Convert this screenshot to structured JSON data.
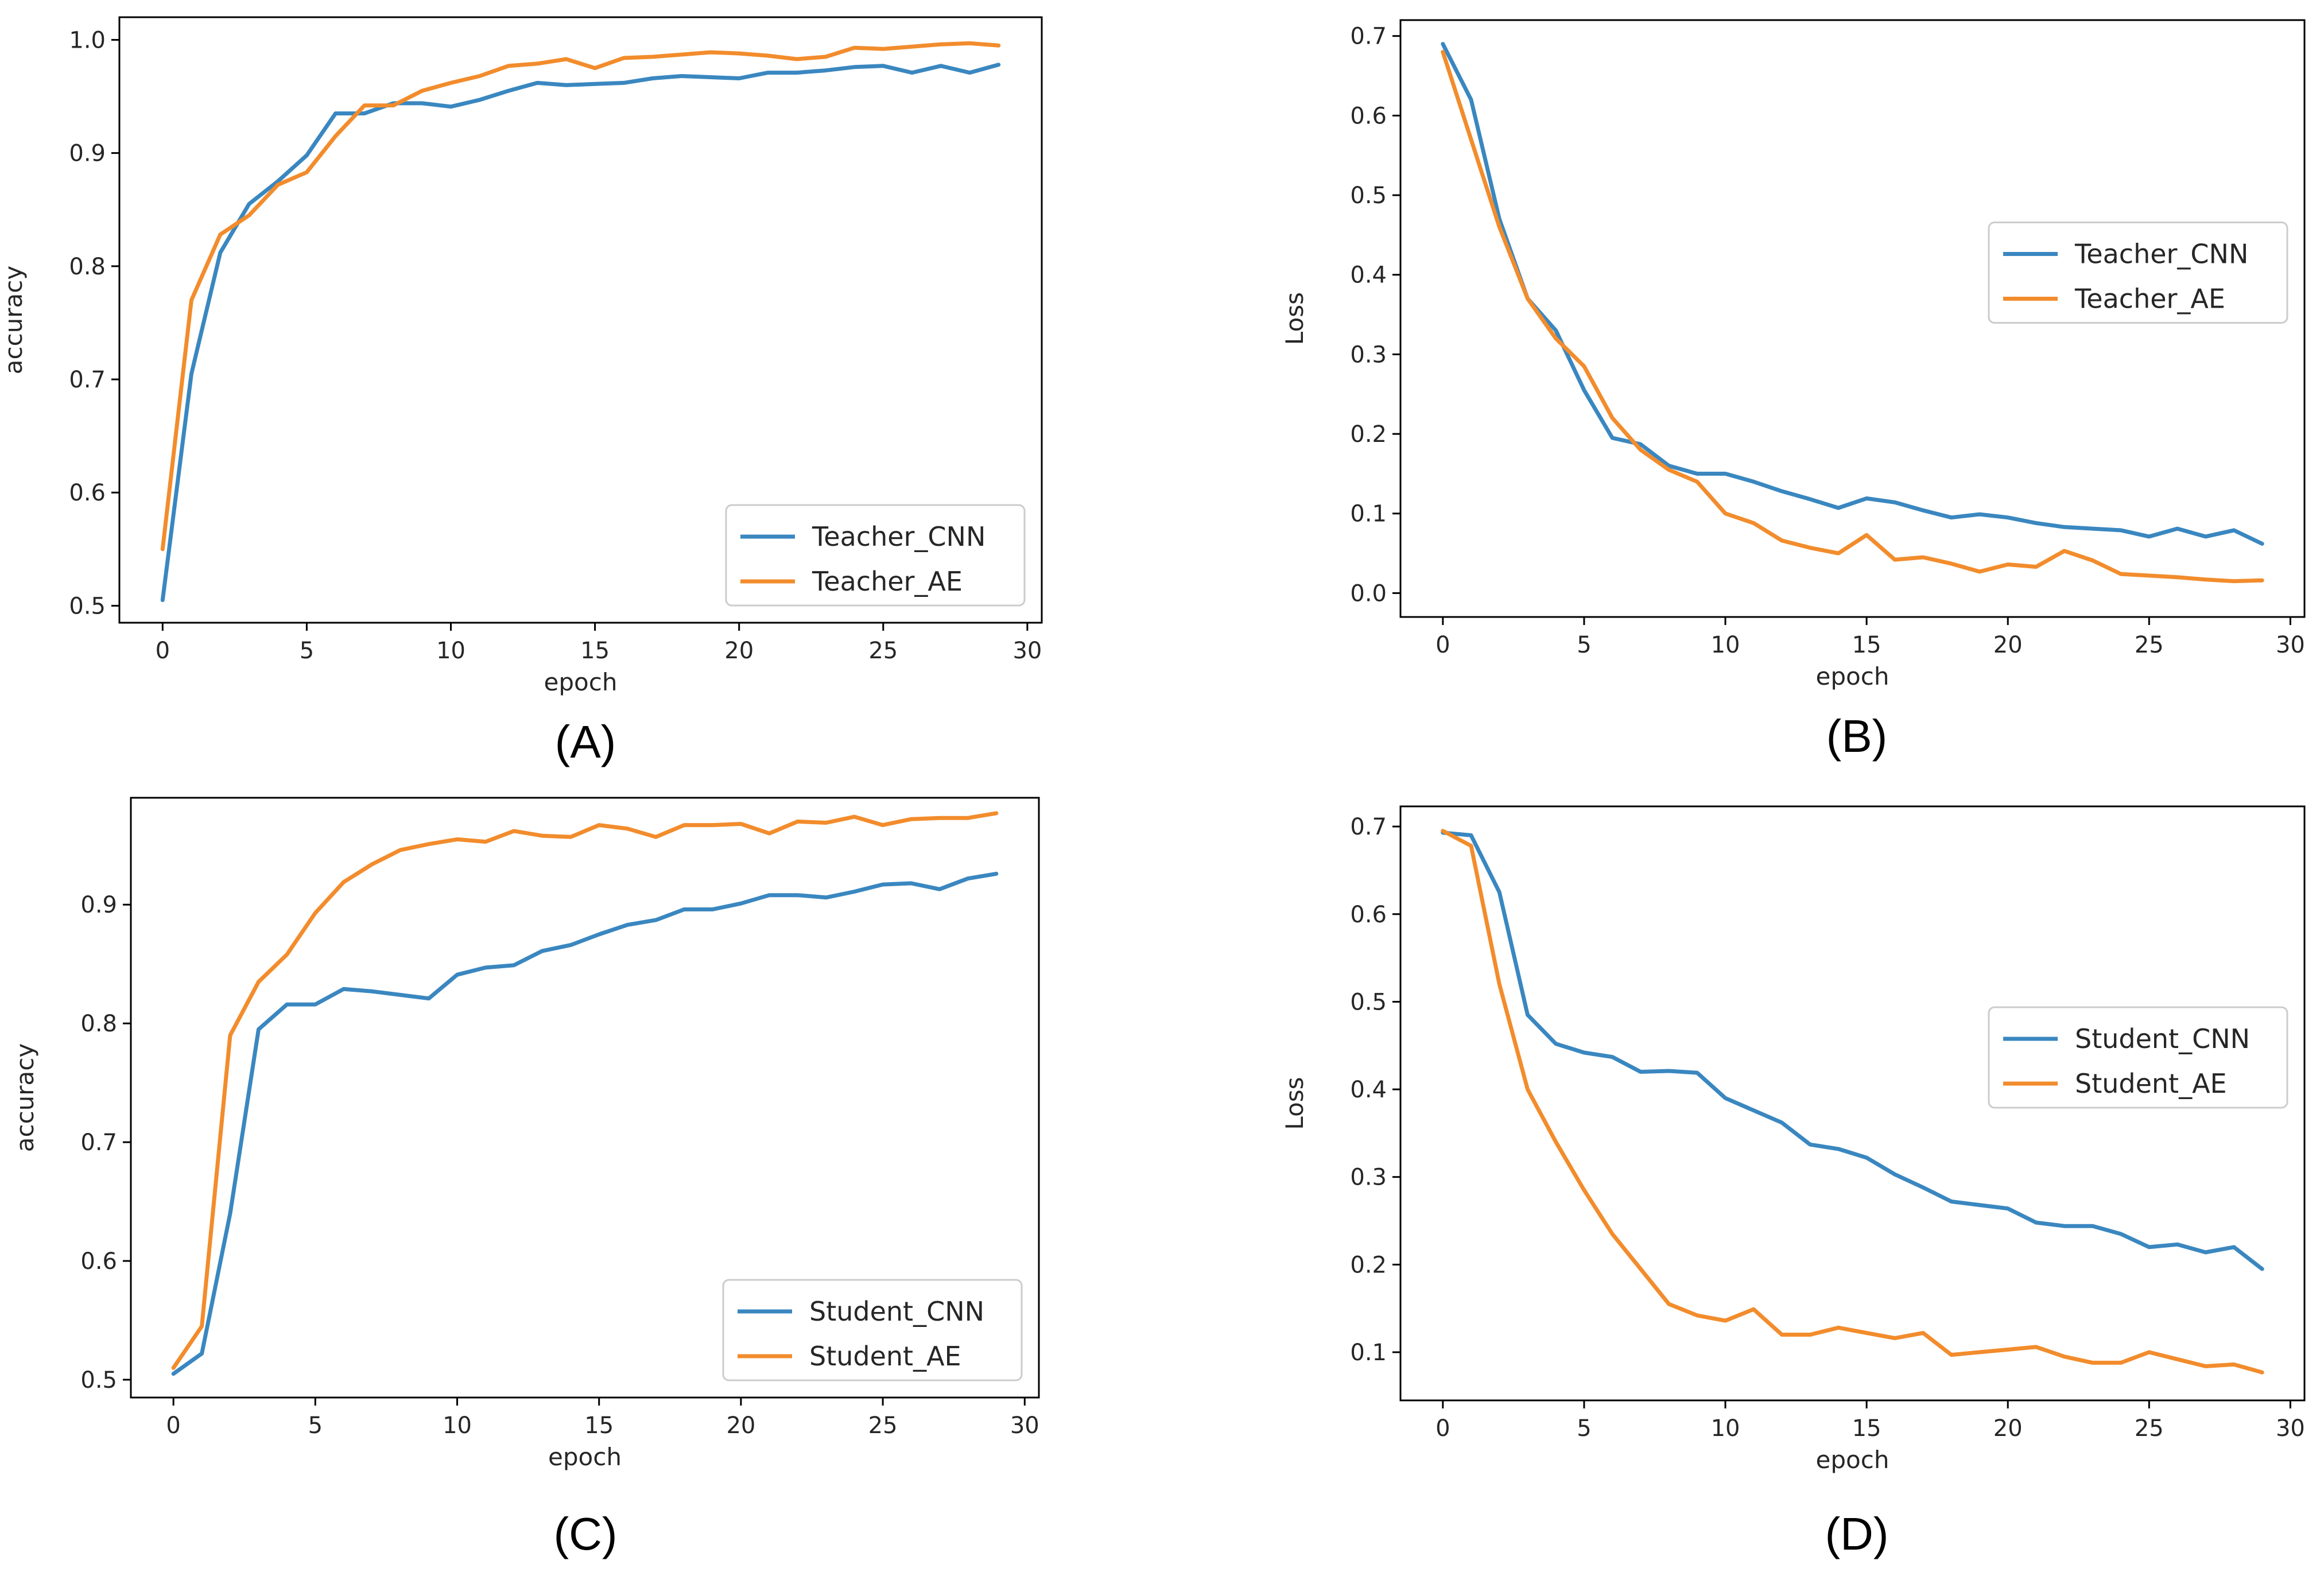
{
  "colors": {
    "cnn": "#3a87c0",
    "ae": "#f28c2c"
  },
  "captions": [
    "(A)",
    "(B)",
    "(C)",
    "(D)"
  ],
  "chart_data": [
    {
      "type": "line",
      "caption": "(A)",
      "xlabel": "epoch",
      "ylabel": "accuracy",
      "xlim": [
        -1.5,
        30.5
      ],
      "ylim": [
        0.485,
        1.02
      ],
      "xticks": [
        "0",
        "5",
        "10",
        "15",
        "20",
        "25",
        "30"
      ],
      "yticks": [
        "0.5",
        "0.6",
        "0.7",
        "0.8",
        "0.9",
        "1.0"
      ],
      "legend_position": "lower-right",
      "x": [
        0,
        1,
        2,
        3,
        4,
        5,
        6,
        7,
        8,
        9,
        10,
        11,
        12,
        13,
        14,
        15,
        16,
        17,
        18,
        19,
        20,
        21,
        22,
        23,
        24,
        25,
        26,
        27,
        28,
        29
      ],
      "series": [
        {
          "name": "Teacher_CNN",
          "color": "cnn",
          "values": [
            0.505,
            0.705,
            0.812,
            0.855,
            0.875,
            0.898,
            0.935,
            0.935,
            0.944,
            0.944,
            0.941,
            0.947,
            0.955,
            0.962,
            0.96,
            0.961,
            0.962,
            0.966,
            0.968,
            0.967,
            0.966,
            0.971,
            0.971,
            0.973,
            0.976,
            0.977,
            0.971,
            0.977,
            0.971,
            0.978
          ]
        },
        {
          "name": "Teacher_AE",
          "color": "ae",
          "values": [
            0.55,
            0.77,
            0.828,
            0.845,
            0.872,
            0.883,
            0.915,
            0.942,
            0.942,
            0.955,
            0.962,
            0.968,
            0.977,
            0.979,
            0.983,
            0.975,
            0.984,
            0.985,
            0.987,
            0.989,
            0.988,
            0.986,
            0.983,
            0.985,
            0.993,
            0.992,
            0.994,
            0.996,
            0.997,
            0.995
          ]
        }
      ]
    },
    {
      "type": "line",
      "caption": "(B)",
      "xlabel": "epoch",
      "ylabel": "Loss",
      "xlim": [
        -1.5,
        30.5
      ],
      "ylim": [
        -0.03,
        0.72
      ],
      "xticks": [
        "0",
        "5",
        "10",
        "15",
        "20",
        "25",
        "30"
      ],
      "yticks": [
        "0.0",
        "0.1",
        "0.2",
        "0.3",
        "0.4",
        "0.5",
        "0.6",
        "0.7"
      ],
      "legend_position": "center-right",
      "x": [
        0,
        1,
        2,
        3,
        4,
        5,
        6,
        7,
        8,
        9,
        10,
        11,
        12,
        13,
        14,
        15,
        16,
        17,
        18,
        19,
        20,
        21,
        22,
        23,
        24,
        25,
        26,
        27,
        28,
        29
      ],
      "series": [
        {
          "name": "Teacher_CNN",
          "color": "cnn",
          "values": [
            0.69,
            0.62,
            0.47,
            0.37,
            0.33,
            0.255,
            0.195,
            0.187,
            0.16,
            0.15,
            0.15,
            0.14,
            0.128,
            0.118,
            0.107,
            0.119,
            0.114,
            0.104,
            0.095,
            0.099,
            0.095,
            0.088,
            0.083,
            0.081,
            0.079,
            0.071,
            0.081,
            0.071,
            0.079,
            0.062
          ]
        },
        {
          "name": "Teacher_AE",
          "color": "ae",
          "values": [
            0.68,
            0.57,
            0.46,
            0.37,
            0.32,
            0.285,
            0.22,
            0.18,
            0.155,
            0.14,
            0.1,
            0.088,
            0.066,
            0.057,
            0.05,
            0.073,
            0.042,
            0.045,
            0.037,
            0.027,
            0.036,
            0.033,
            0.053,
            0.041,
            0.024,
            0.022,
            0.02,
            0.017,
            0.015,
            0.016
          ]
        }
      ]
    },
    {
      "type": "line",
      "caption": "(C)",
      "xlabel": "epoch",
      "ylabel": "accuracy",
      "xlim": [
        -1.5,
        30.5
      ],
      "ylim": [
        0.485,
        0.99
      ],
      "xticks": [
        "0",
        "5",
        "10",
        "15",
        "20",
        "25",
        "30"
      ],
      "yticks": [
        "0.5",
        "0.6",
        "0.7",
        "0.8",
        "0.9"
      ],
      "legend_position": "lower-right",
      "x": [
        0,
        1,
        2,
        3,
        4,
        5,
        6,
        7,
        8,
        9,
        10,
        11,
        12,
        13,
        14,
        15,
        16,
        17,
        18,
        19,
        20,
        21,
        22,
        23,
        24,
        25,
        26,
        27,
        28,
        29
      ],
      "series": [
        {
          "name": "Student_CNN",
          "color": "cnn",
          "values": [
            0.505,
            0.522,
            0.64,
            0.795,
            0.816,
            0.816,
            0.829,
            0.827,
            0.824,
            0.821,
            0.841,
            0.847,
            0.849,
            0.861,
            0.866,
            0.875,
            0.883,
            0.887,
            0.896,
            0.896,
            0.901,
            0.908,
            0.908,
            0.906,
            0.911,
            0.917,
            0.918,
            0.913,
            0.922,
            0.926
          ]
        },
        {
          "name": "Student_AE",
          "color": "ae",
          "values": [
            0.51,
            0.545,
            0.79,
            0.835,
            0.858,
            0.893,
            0.919,
            0.934,
            0.946,
            0.951,
            0.955,
            0.953,
            0.962,
            0.958,
            0.957,
            0.967,
            0.964,
            0.957,
            0.967,
            0.967,
            0.968,
            0.96,
            0.97,
            0.969,
            0.974,
            0.967,
            0.972,
            0.973,
            0.973,
            0.977
          ]
        }
      ]
    },
    {
      "type": "line",
      "caption": "(D)",
      "xlabel": "epoch",
      "ylabel": "Loss",
      "xlim": [
        -1.5,
        30.5
      ],
      "ylim": [
        0.045,
        0.723
      ],
      "xticks": [
        "0",
        "5",
        "10",
        "15",
        "20",
        "25",
        "30"
      ],
      "yticks": [
        "0.1",
        "0.2",
        "0.3",
        "0.4",
        "0.5",
        "0.6",
        "0.7"
      ],
      "legend_position": "center-right",
      "x": [
        0,
        1,
        2,
        3,
        4,
        5,
        6,
        7,
        8,
        9,
        10,
        11,
        12,
        13,
        14,
        15,
        16,
        17,
        18,
        19,
        20,
        21,
        22,
        23,
        24,
        25,
        26,
        27,
        28,
        29
      ],
      "series": [
        {
          "name": "Student_CNN",
          "color": "cnn",
          "values": [
            0.693,
            0.69,
            0.625,
            0.485,
            0.452,
            0.442,
            0.437,
            0.42,
            0.421,
            0.419,
            0.39,
            0.376,
            0.362,
            0.337,
            0.332,
            0.322,
            0.303,
            0.288,
            0.272,
            0.268,
            0.264,
            0.248,
            0.244,
            0.244,
            0.235,
            0.22,
            0.223,
            0.214,
            0.22,
            0.195
          ]
        },
        {
          "name": "Student_AE",
          "color": "ae",
          "values": [
            0.695,
            0.678,
            0.52,
            0.4,
            0.34,
            0.285,
            0.235,
            0.195,
            0.155,
            0.142,
            0.136,
            0.149,
            0.12,
            0.12,
            0.128,
            0.122,
            0.116,
            0.122,
            0.097,
            0.1,
            0.103,
            0.106,
            0.095,
            0.088,
            0.088,
            0.1,
            0.092,
            0.084,
            0.086,
            0.077
          ]
        }
      ]
    }
  ]
}
